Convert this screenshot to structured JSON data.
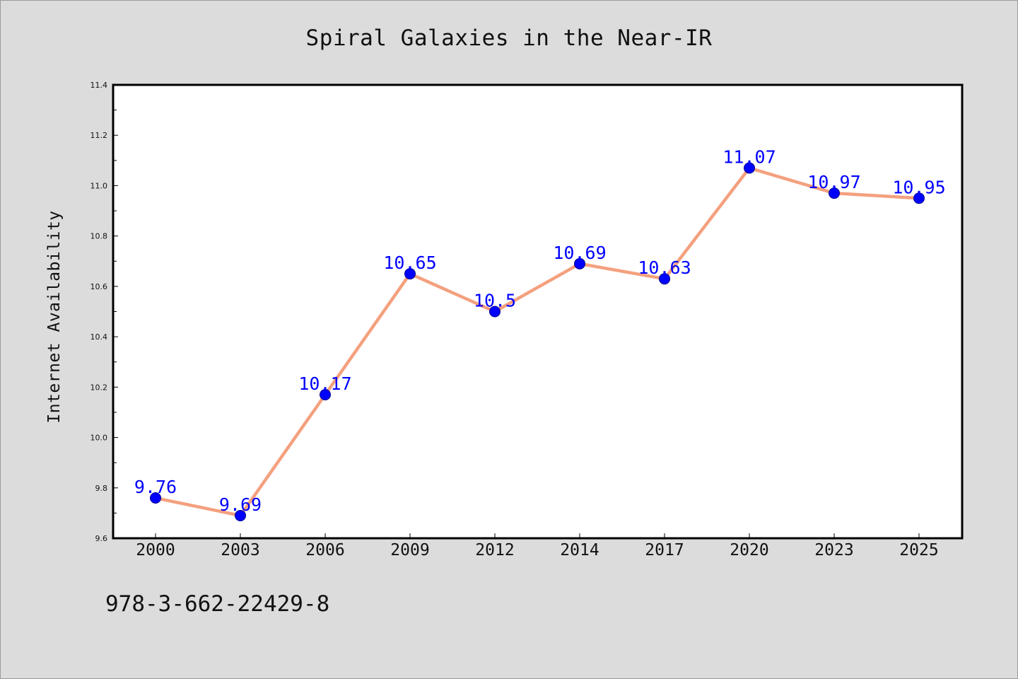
{
  "chart_data": {
    "type": "line",
    "title": "Spiral Galaxies in the Near-IR",
    "xlabel": "",
    "ylabel": "Internet Availability",
    "categories": [
      "2000",
      "2003",
      "2006",
      "2009",
      "2012",
      "2014",
      "2017",
      "2020",
      "2023",
      "2025"
    ],
    "values": [
      9.76,
      9.69,
      10.17,
      10.65,
      10.5,
      10.69,
      10.63,
      11.07,
      10.97,
      10.95
    ],
    "data_labels": [
      "9.76",
      "9.69",
      "10.17",
      "10.65",
      "10.5",
      "10.69",
      "10.63",
      "11.07",
      "10.97",
      "10.95"
    ],
    "ylim": [
      9.6,
      11.4
    ],
    "yticks": [
      "9.6",
      "9.8",
      "10.0",
      "10.2",
      "10.4",
      "10.6",
      "10.8",
      "11.0",
      "11.2",
      "11.4"
    ],
    "grid": false,
    "legend": "none",
    "colors": {
      "line": "#f4a07e",
      "marker": "#0000ff",
      "data_label": "#0000ff",
      "plot_background": "#ffffff",
      "page_background": "#dcdcdc"
    }
  },
  "footer": {
    "isbn": "978-3-662-22429-8"
  }
}
